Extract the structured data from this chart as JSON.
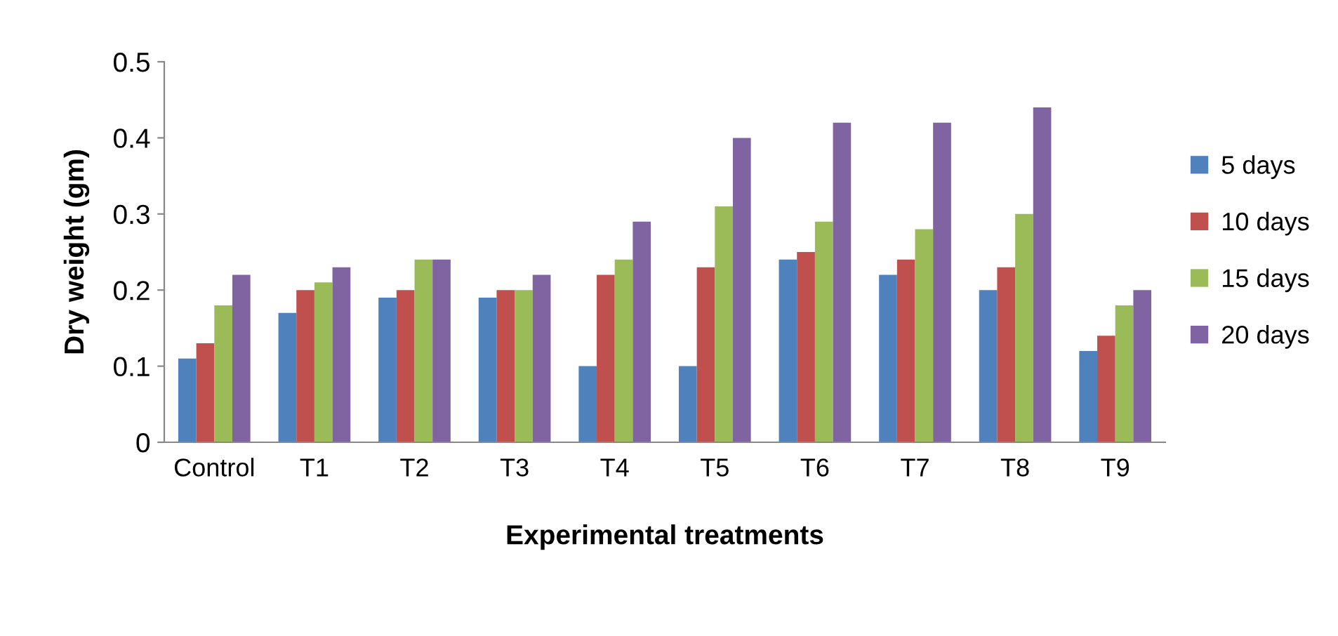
{
  "chart_data": {
    "type": "bar",
    "xlabel": "Experimental treatments",
    "ylabel": "Dry weight (gm)",
    "categories": [
      "Control",
      "T1",
      "T2",
      "T3",
      "T4",
      "T5",
      "T6",
      "T7",
      "T8",
      "T9"
    ],
    "series": [
      {
        "name": "5 days",
        "color": "#4f81bd",
        "values": [
          0.11,
          0.17,
          0.19,
          0.19,
          0.1,
          0.1,
          0.24,
          0.22,
          0.2,
          0.12
        ]
      },
      {
        "name": "10 days",
        "color": "#c0504d",
        "values": [
          0.13,
          0.2,
          0.2,
          0.2,
          0.22,
          0.23,
          0.25,
          0.24,
          0.23,
          0.14
        ]
      },
      {
        "name": "15 days",
        "color": "#9bbb59",
        "values": [
          0.18,
          0.21,
          0.24,
          0.2,
          0.24,
          0.31,
          0.29,
          0.28,
          0.3,
          0.18
        ]
      },
      {
        "name": "20 days",
        "color": "#8064a2",
        "values": [
          0.22,
          0.23,
          0.24,
          0.22,
          0.29,
          0.4,
          0.42,
          0.42,
          0.44,
          0.2
        ]
      }
    ],
    "ylim": [
      0,
      0.5
    ],
    "yticks": [
      {
        "value": 0,
        "label": "0"
      },
      0.1,
      0.2,
      0.3,
      0.4,
      0.5
    ],
    "grid": false,
    "legend": "right"
  }
}
